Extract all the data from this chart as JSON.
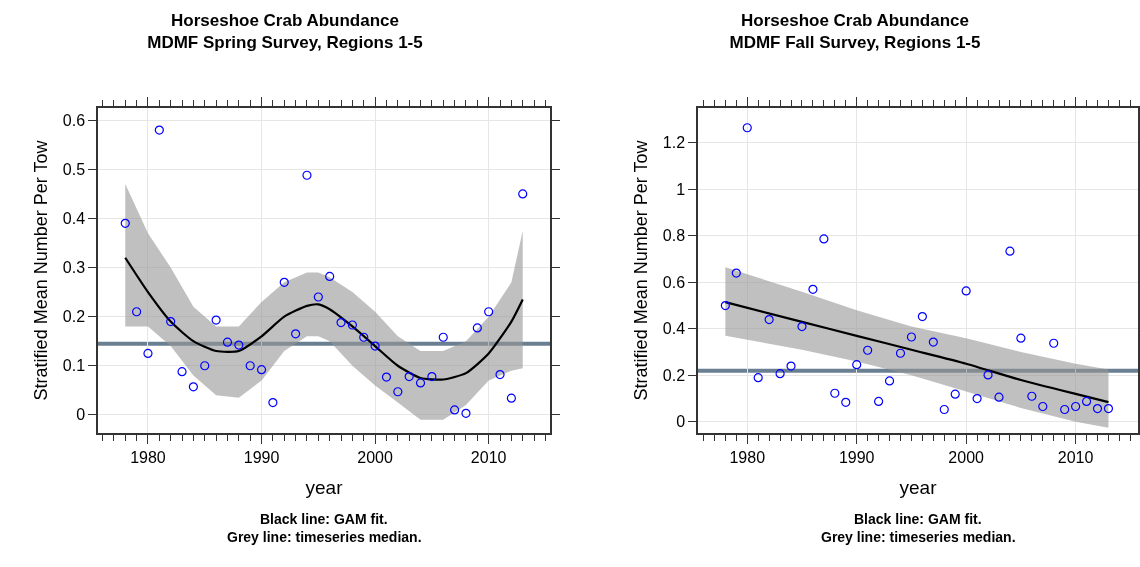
{
  "chart_data": [
    {
      "type": "scatter",
      "title": "Horseshoe Crab Abundance",
      "subtitle": "MDMF Spring Survey, Regions 1-5",
      "xlabel": "year",
      "ylabel": "Stratified Mean Number Per Tow",
      "annotations": [
        "Black line: GAM fit.",
        "Grey line: timeseries median."
      ],
      "xlim": [
        1975.6,
        2015.4
      ],
      "xticks": [
        1980,
        1990,
        2000,
        2010
      ],
      "ylim": [
        -0.037,
        0.625
      ],
      "yticks": [
        0.0,
        0.1,
        0.2,
        0.3,
        0.4,
        0.5,
        0.6
      ],
      "grid": true,
      "series": [
        {
          "marker": "circle",
          "color": "#0000ff",
          "x": [
            1978,
            1979,
            1980,
            1981,
            1982,
            1983,
            1984,
            1985,
            1986,
            1987,
            1988,
            1989,
            1990,
            1991,
            1992,
            1993,
            1994,
            1995,
            1996,
            1997,
            1998,
            1999,
            2000,
            2001,
            2002,
            2003,
            2004,
            2005,
            2006,
            2007,
            2008,
            2009,
            2010,
            2011,
            2012,
            2013
          ],
          "values": [
            0.39,
            0.21,
            0.125,
            0.58,
            0.19,
            0.088,
            0.057,
            0.1,
            0.193,
            0.148,
            0.142,
            0.1,
            0.092,
            0.025,
            0.27,
            0.165,
            0.488,
            0.24,
            0.282,
            0.188,
            0.183,
            0.158,
            0.14,
            0.077,
            0.047,
            0.078,
            0.065,
            0.078,
            0.158,
            0.01,
            0.003,
            0.177,
            0.21,
            0.082,
            0.034,
            0.45
          ]
        },
        {
          "type": "line",
          "color": "#000000",
          "x": [
            1978,
            1980,
            1982,
            1984,
            1986,
            1988,
            1990,
            1992,
            1994,
            1995,
            1996,
            1998,
            2000,
            2002,
            2004,
            2006,
            2008,
            2010,
            2012,
            2013
          ],
          "values": [
            0.32,
            0.25,
            0.19,
            0.15,
            0.13,
            0.13,
            0.16,
            0.2,
            0.222,
            0.225,
            0.215,
            0.18,
            0.14,
            0.1,
            0.075,
            0.072,
            0.085,
            0.125,
            0.19,
            0.235
          ],
          "lower": [
            0.18,
            0.18,
            0.14,
            0.08,
            0.04,
            0.035,
            0.07,
            0.13,
            0.16,
            0.16,
            0.15,
            0.1,
            0.06,
            0.025,
            -0.01,
            -0.01,
            0.02,
            0.07,
            0.09,
            0.095
          ],
          "upper": [
            0.47,
            0.37,
            0.3,
            0.22,
            0.18,
            0.18,
            0.23,
            0.27,
            0.29,
            0.29,
            0.28,
            0.25,
            0.21,
            0.16,
            0.13,
            0.13,
            0.15,
            0.2,
            0.27,
            0.375
          ]
        }
      ],
      "ref_lines": [
        {
          "axis": "y",
          "value": 0.145,
          "color": "#6b7f92"
        }
      ]
    },
    {
      "type": "scatter",
      "title": "Horseshoe Crab Abundance",
      "subtitle": "MDMF Fall Survey, Regions 1-5",
      "xlabel": "year",
      "ylabel": "Stratified Mean Number Per Tow",
      "annotations": [
        "Black line: GAM fit.",
        "Grey line: timeseries median."
      ],
      "xlim": [
        1975.5,
        2015.7
      ],
      "xticks": [
        1980,
        1990,
        2000,
        2010
      ],
      "ylim": [
        -0.048,
        1.35
      ],
      "yticks": [
        0.0,
        0.2,
        0.4,
        0.6,
        0.8,
        1.0,
        1.2
      ],
      "grid": true,
      "series": [
        {
          "marker": "circle",
          "color": "#0000ff",
          "x": [
            1978,
            1979,
            1980,
            1981,
            1982,
            1983,
            1984,
            1985,
            1986,
            1987,
            1988,
            1989,
            1990,
            1991,
            1992,
            1993,
            1994,
            1995,
            1996,
            1997,
            1998,
            1999,
            2000,
            2001,
            2002,
            2003,
            2004,
            2005,
            2006,
            2007,
            2008,
            2009,
            2010,
            2011,
            2012,
            2013
          ],
          "values": [
            0.5,
            0.64,
            1.265,
            0.19,
            0.44,
            0.207,
            0.24,
            0.41,
            0.57,
            0.787,
            0.123,
            0.084,
            0.246,
            0.308,
            0.088,
            0.176,
            0.295,
            0.365,
            0.453,
            0.343,
            0.053,
            0.119,
            0.563,
            0.1,
            0.202,
            0.106,
            0.734,
            0.36,
            0.11,
            0.066,
            0.338,
            0.053,
            0.066,
            0.088,
            0.057,
            0.057
          ]
        },
        {
          "type": "line",
          "color": "#000000",
          "x": [
            1978,
            1985,
            1990,
            1995,
            2000,
            2005,
            2010,
            2013
          ],
          "values": [
            0.515,
            0.43,
            0.37,
            0.31,
            0.25,
            0.18,
            0.12,
            0.085
          ],
          "lower": [
            0.37,
            0.31,
            0.26,
            0.2,
            0.13,
            0.06,
            0.0,
            -0.025
          ],
          "upper": [
            0.665,
            0.56,
            0.48,
            0.41,
            0.36,
            0.3,
            0.25,
            0.225
          ]
        }
      ],
      "ref_lines": [
        {
          "axis": "y",
          "value": 0.22,
          "color": "#6b7f92"
        }
      ]
    }
  ]
}
